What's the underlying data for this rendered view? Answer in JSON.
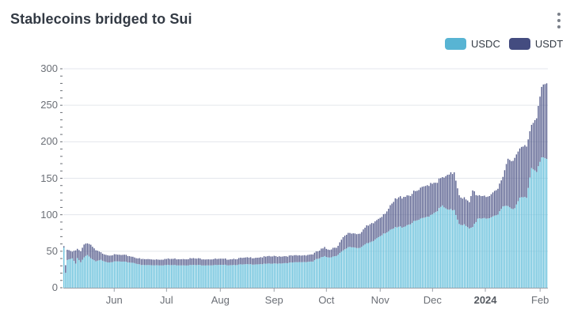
{
  "header": {
    "title": "Stablecoins bridged to Sui",
    "menu_icon": "kebab-menu-icon"
  },
  "legend": [
    {
      "label": "USDC",
      "color": "#58b4d3"
    },
    {
      "label": "USDT",
      "color": "#444c80"
    }
  ],
  "colors": {
    "usdc": "#6ec3dd",
    "usdc_edge": "#3f95b6",
    "usdt": "#5b6290",
    "usdt_edge": "#3a4175",
    "grid": "#e3e6ec",
    "axis": "#9aa0a8"
  },
  "chart_data": {
    "type": "bar",
    "stacked": true,
    "title": "Stablecoins bridged to Sui",
    "xlabel": "",
    "ylabel": "",
    "ylim": [
      0,
      300
    ],
    "yticks": [
      0,
      50,
      100,
      150,
      200,
      250,
      300
    ],
    "xticks": [
      {
        "label": "Jun",
        "pos": 0.105,
        "bold": false
      },
      {
        "label": "Jul",
        "pos": 0.213,
        "bold": false
      },
      {
        "label": "Aug",
        "pos": 0.324,
        "bold": false
      },
      {
        "label": "Sep",
        "pos": 0.435,
        "bold": false
      },
      {
        "label": "Oct",
        "pos": 0.543,
        "bold": false
      },
      {
        "label": "Nov",
        "pos": 0.654,
        "bold": false
      },
      {
        "label": "Dec",
        "pos": 0.762,
        "bold": false
      },
      {
        "label": "2024",
        "pos": 0.871,
        "bold": true
      },
      {
        "label": "Feb",
        "pos": 0.984,
        "bold": false
      }
    ],
    "grid": true,
    "legend_position": "top-right",
    "x_range": "mid-May 2023 to early Feb 2024 (daily)",
    "series": [
      {
        "name": "USDC",
        "keypoints": [
          [
            0,
            55
          ],
          [
            1,
            20
          ],
          [
            2,
            38
          ],
          [
            5,
            40
          ],
          [
            7,
            33
          ],
          [
            8,
            41
          ],
          [
            10,
            35
          ],
          [
            12,
            42
          ],
          [
            14,
            45
          ],
          [
            16,
            40
          ],
          [
            19,
            36
          ],
          [
            22,
            38
          ],
          [
            26,
            35
          ],
          [
            32,
            36
          ],
          [
            38,
            35
          ],
          [
            42,
            34
          ],
          [
            46,
            31
          ],
          [
            55,
            31
          ],
          [
            75,
            31
          ],
          [
            95,
            31
          ],
          [
            110,
            32
          ],
          [
            125,
            33
          ],
          [
            140,
            35
          ],
          [
            148,
            36
          ],
          [
            150,
            39
          ],
          [
            155,
            42
          ],
          [
            160,
            43
          ],
          [
            163,
            46
          ],
          [
            166,
            50
          ],
          [
            170,
            56
          ],
          [
            175,
            55
          ],
          [
            178,
            58
          ],
          [
            183,
            62
          ],
          [
            186,
            68
          ],
          [
            190,
            75
          ],
          [
            194,
            78
          ],
          [
            197,
            82
          ],
          [
            202,
            84
          ],
          [
            206,
            88
          ],
          [
            210,
            92
          ],
          [
            214,
            95
          ],
          [
            218,
            100
          ],
          [
            222,
            106
          ],
          [
            225,
            112
          ],
          [
            228,
            106
          ],
          [
            232,
            107
          ],
          [
            235,
            88
          ],
          [
            238,
            86
          ],
          [
            241,
            80
          ],
          [
            243,
            83
          ],
          [
            246,
            95
          ],
          [
            250,
            96
          ],
          [
            254,
            95
          ],
          [
            258,
            100
          ],
          [
            261,
            113
          ],
          [
            264,
            112
          ],
          [
            268,
            108
          ],
          [
            271,
            123
          ],
          [
            275,
            124
          ],
          [
            278,
            165
          ],
          [
            281,
            160
          ],
          [
            284,
            178
          ],
          [
            287,
            176
          ]
        ]
      },
      {
        "name": "USDT",
        "keypoints": [
          [
            0,
            2
          ],
          [
            1,
            10
          ],
          [
            2,
            14
          ],
          [
            5,
            9
          ],
          [
            7,
            18
          ],
          [
            8,
            13
          ],
          [
            10,
            15
          ],
          [
            12,
            18
          ],
          [
            14,
            16
          ],
          [
            16,
            18
          ],
          [
            19,
            15
          ],
          [
            22,
            10
          ],
          [
            26,
            10
          ],
          [
            32,
            9
          ],
          [
            38,
            9
          ],
          [
            42,
            8
          ],
          [
            46,
            8
          ],
          [
            55,
            8
          ],
          [
            75,
            9
          ],
          [
            95,
            8
          ],
          [
            110,
            9
          ],
          [
            125,
            10
          ],
          [
            140,
            9
          ],
          [
            148,
            10
          ],
          [
            150,
            10
          ],
          [
            155,
            11
          ],
          [
            160,
            12
          ],
          [
            163,
            13
          ],
          [
            166,
            17
          ],
          [
            170,
            19
          ],
          [
            175,
            20
          ],
          [
            178,
            22
          ],
          [
            183,
            24
          ],
          [
            186,
            25
          ],
          [
            190,
            27
          ],
          [
            194,
            32
          ],
          [
            197,
            38
          ],
          [
            202,
            42
          ],
          [
            206,
            40
          ],
          [
            210,
            40
          ],
          [
            214,
            42
          ],
          [
            218,
            44
          ],
          [
            222,
            40
          ],
          [
            225,
            38
          ],
          [
            228,
            46
          ],
          [
            232,
            52
          ],
          [
            235,
            40
          ],
          [
            238,
            36
          ],
          [
            241,
            35
          ],
          [
            243,
            50
          ],
          [
            246,
            32
          ],
          [
            250,
            31
          ],
          [
            254,
            30
          ],
          [
            258,
            35
          ],
          [
            261,
            42
          ],
          [
            264,
            65
          ],
          [
            268,
            68
          ],
          [
            271,
            67
          ],
          [
            275,
            71
          ],
          [
            278,
            60
          ],
          [
            281,
            75
          ],
          [
            284,
            96
          ],
          [
            287,
            103
          ]
        ]
      }
    ],
    "bar_count": 288
  }
}
